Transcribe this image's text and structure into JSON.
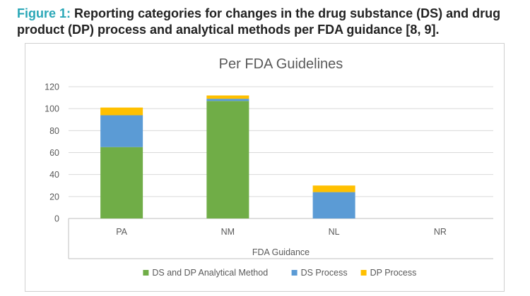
{
  "caption": {
    "label": "Figure 1:",
    "text": "Reporting categories for changes in the drug substance (DS) and drug product (DP) process and analytical methods per FDA guidance [8, 9]."
  },
  "colors": {
    "caption_label": "#2aa7b7",
    "caption_text": "#222222",
    "grid": "#d9d9d9",
    "axis_text": "#595959"
  },
  "chart_data": {
    "type": "bar",
    "stacked": true,
    "title": "Per FDA Guidelines",
    "xlabel": "FDA Guidance",
    "ylabel": "",
    "categories": [
      "PA",
      "NM",
      "NL",
      "NR"
    ],
    "ylim": [
      0,
      120
    ],
    "yticks": [
      0,
      20,
      40,
      60,
      80,
      100,
      120
    ],
    "grid": true,
    "legend_position": "bottom",
    "series": [
      {
        "name": "DS and DP Analytical Method",
        "color": "#70ad47",
        "values": [
          65,
          107,
          0,
          0
        ]
      },
      {
        "name": "DS Process",
        "color": "#5b9bd5",
        "values": [
          29,
          2,
          24,
          0
        ]
      },
      {
        "name": "DP Process",
        "color": "#ffc000",
        "values": [
          7,
          3,
          6,
          0
        ]
      }
    ]
  }
}
